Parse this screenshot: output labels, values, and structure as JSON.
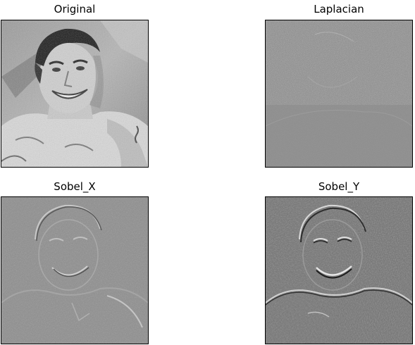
{
  "figure": {
    "panels": [
      {
        "title": "Original",
        "kind": "original-photo"
      },
      {
        "title": "Laplacian",
        "kind": "laplacian-edge-map"
      },
      {
        "title": "Sobel_X",
        "kind": "sobel-x-edge-map"
      },
      {
        "title": "Sobel_Y",
        "kind": "sobel-y-edge-map"
      }
    ],
    "colors": {
      "background": "#ffffff",
      "axes_frame": "#000000",
      "mid_gray": "#888888"
    }
  }
}
